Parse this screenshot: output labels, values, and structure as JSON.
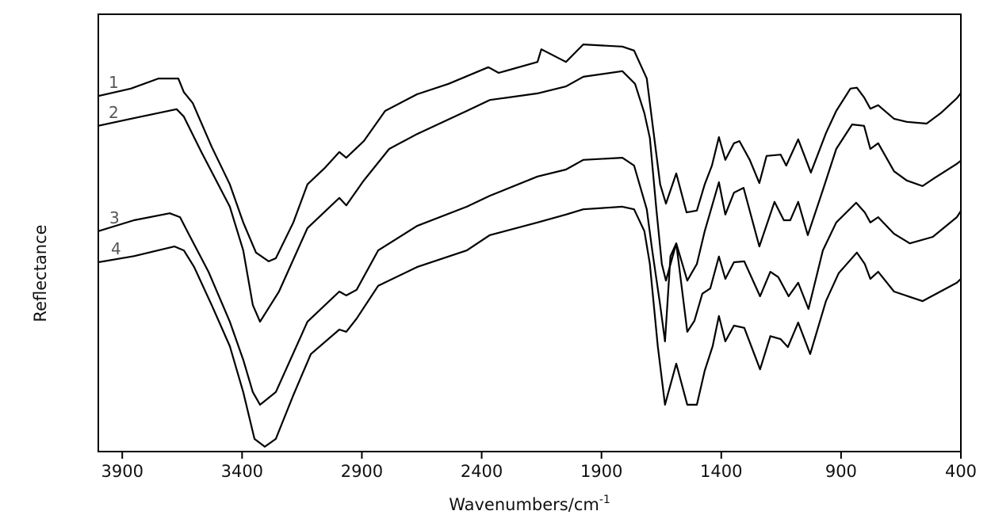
{
  "chart_data": {
    "type": "line",
    "title": "",
    "xlabel": "Wavenumbers/cm",
    "xlabel_superscript": "-1",
    "ylabel": "Reflectance",
    "xlim": [
      4000,
      400
    ],
    "x_reversed": true,
    "ylim": [
      0,
      100
    ],
    "y_units": "arbitrary (offset spectra)",
    "grid": false,
    "legend": "inline labels left",
    "xticks": [
      3900,
      3400,
      2900,
      2400,
      1900,
      1400,
      900,
      400
    ],
    "series": [
      {
        "name": "1",
        "color": "#000000",
        "x": [
          4000,
          3864,
          3749,
          3666,
          3643,
          3606,
          3527,
          3451,
          3395,
          3342,
          3289,
          3259,
          3186,
          3127,
          3054,
          2994,
          2965,
          2892,
          2803,
          2670,
          2538,
          2372,
          2329,
          2167,
          2151,
          2048,
          1976,
          1813,
          1764,
          1711,
          1688,
          1655,
          1631,
          1588,
          1545,
          1502,
          1469,
          1439,
          1410,
          1383,
          1347,
          1324,
          1281,
          1241,
          1211,
          1152,
          1129,
          1079,
          1026,
          963,
          920,
          861,
          834,
          804,
          778,
          745,
          679,
          626,
          543,
          484,
          417,
          400
        ],
        "y": [
          81.3,
          83.0,
          85.3,
          85.3,
          82.2,
          79.7,
          69.7,
          61.1,
          52.4,
          45.5,
          43.5,
          44.2,
          52.4,
          61.1,
          64.9,
          68.5,
          67.2,
          71.0,
          77.9,
          81.7,
          84.1,
          87.9,
          86.6,
          89.1,
          92.0,
          89.1,
          93.1,
          92.6,
          91.7,
          85.3,
          75.4,
          61.1,
          56.7,
          63.6,
          54.7,
          55.1,
          61.1,
          65.4,
          71.9,
          66.7,
          70.5,
          71.0,
          66.7,
          61.4,
          67.6,
          67.9,
          65.4,
          71.4,
          63.8,
          72.8,
          77.9,
          83.0,
          83.2,
          81.0,
          78.4,
          79.2,
          76.1,
          75.4,
          75.0,
          77.4,
          80.8,
          82.0
        ]
      },
      {
        "name": "2",
        "color": "#000000",
        "x": [
          4000,
          3864,
          3673,
          3643,
          3570,
          3451,
          3395,
          3355,
          3325,
          3246,
          3127,
          2994,
          2965,
          2892,
          2786,
          2670,
          2462,
          2366,
          2167,
          2048,
          1976,
          1813,
          1760,
          1721,
          1698,
          1671,
          1648,
          1631,
          1588,
          1542,
          1502,
          1469,
          1410,
          1383,
          1347,
          1307,
          1241,
          1178,
          1139,
          1112,
          1079,
          1039,
          976,
          920,
          854,
          804,
          778,
          745,
          679,
          626,
          560,
          517,
          417,
          400
        ],
        "y": [
          74.5,
          76.1,
          78.3,
          76.6,
          68.5,
          56.0,
          46.0,
          33.5,
          29.7,
          36.6,
          51.1,
          58.0,
          56.3,
          62.0,
          69.2,
          72.6,
          77.9,
          80.4,
          81.9,
          83.5,
          85.7,
          87.0,
          84.1,
          77.4,
          71.7,
          55.4,
          42.9,
          39.1,
          47.6,
          39.1,
          42.9,
          50.4,
          61.6,
          54.2,
          59.2,
          60.3,
          46.9,
          57.1,
          52.9,
          52.9,
          57.1,
          49.5,
          59.8,
          69.2,
          74.8,
          74.5,
          69.2,
          70.5,
          64.1,
          62.0,
          60.7,
          62.3,
          65.8,
          66.5
        ]
      },
      {
        "name": "3",
        "color": "#000000",
        "x": [
          4000,
          3851,
          3702,
          3659,
          3623,
          3540,
          3451,
          3395,
          3355,
          3325,
          3259,
          3127,
          2994,
          2965,
          2922,
          2832,
          2670,
          2462,
          2366,
          2167,
          2048,
          1976,
          1813,
          1764,
          1711,
          1688,
          1655,
          1635,
          1612,
          1588,
          1542,
          1512,
          1479,
          1446,
          1410,
          1383,
          1347,
          1304,
          1238,
          1195,
          1162,
          1119,
          1079,
          1036,
          976,
          920,
          837,
          801,
          778,
          745,
          679,
          613,
          517,
          417,
          400
        ],
        "y": [
          50.4,
          52.9,
          54.5,
          53.6,
          49.8,
          41.1,
          29.7,
          21.0,
          13.6,
          10.7,
          13.6,
          29.7,
          36.6,
          35.7,
          37.0,
          46.0,
          51.6,
          56.0,
          58.5,
          62.9,
          64.5,
          66.7,
          67.2,
          65.4,
          55.4,
          46.0,
          33.5,
          25.2,
          44.7,
          47.6,
          27.4,
          29.9,
          36.1,
          37.3,
          44.6,
          39.5,
          43.3,
          43.5,
          35.5,
          41.1,
          39.9,
          35.5,
          38.6,
          32.6,
          46.0,
          52.4,
          56.9,
          54.7,
          52.4,
          53.6,
          49.8,
          47.6,
          49.1,
          53.6,
          55.0
        ]
      },
      {
        "name": "4",
        "color": "#000000",
        "x": [
          4000,
          3851,
          3682,
          3643,
          3600,
          3527,
          3451,
          3395,
          3348,
          3305,
          3259,
          3186,
          3113,
          2994,
          2965,
          2922,
          2832,
          2670,
          2462,
          2366,
          2167,
          2048,
          1976,
          1813,
          1764,
          1721,
          1698,
          1665,
          1635,
          1588,
          1542,
          1502,
          1469,
          1436,
          1410,
          1383,
          1347,
          1304,
          1238,
          1195,
          1152,
          1122,
          1079,
          1029,
          963,
          910,
          834,
          801,
          778,
          745,
          679,
          560,
          417,
          400
        ],
        "y": [
          43.3,
          44.7,
          46.9,
          46.0,
          42.2,
          33.5,
          24.1,
          13.6,
          2.9,
          1.1,
          2.9,
          12.9,
          22.3,
          27.9,
          27.4,
          30.4,
          37.9,
          42.2,
          46.0,
          49.5,
          52.4,
          54.2,
          55.4,
          56.0,
          55.4,
          50.4,
          42.9,
          24.1,
          10.7,
          20.1,
          10.7,
          10.7,
          18.5,
          24.1,
          31.0,
          25.2,
          28.8,
          28.3,
          18.8,
          26.4,
          25.7,
          23.9,
          29.5,
          22.3,
          34.4,
          40.8,
          45.5,
          42.9,
          39.5,
          41.1,
          36.6,
          34.4,
          38.6,
          39.5
        ]
      }
    ]
  }
}
